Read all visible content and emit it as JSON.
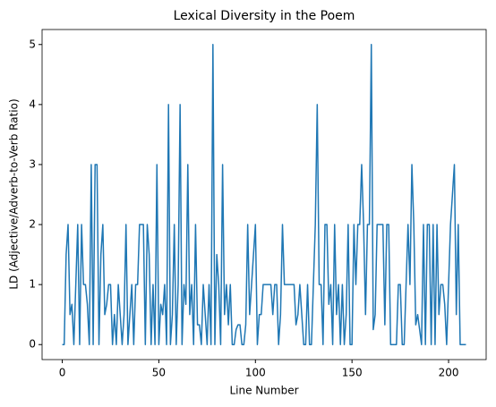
{
  "chart_data": {
    "type": "line",
    "title": "Lexical Diversity in the Poem",
    "xlabel": "Line Number",
    "ylabel": "LD (Adjective/Adverb-to-Verb Ratio)",
    "x": [
      0,
      1,
      2,
      3,
      4,
      5,
      6,
      7,
      8,
      9,
      10,
      11,
      12,
      13,
      14,
      15,
      16,
      17,
      18,
      19,
      20,
      21,
      22,
      23,
      24,
      25,
      26,
      27,
      28,
      29,
      30,
      31,
      32,
      33,
      34,
      35,
      36,
      37,
      38,
      39,
      40,
      41,
      42,
      43,
      44,
      45,
      46,
      47,
      48,
      49,
      50,
      51,
      52,
      53,
      54,
      55,
      56,
      57,
      58,
      59,
      60,
      61,
      62,
      63,
      64,
      65,
      66,
      67,
      68,
      69,
      70,
      71,
      72,
      73,
      74,
      75,
      76,
      77,
      78,
      79,
      80,
      81,
      82,
      83,
      84,
      85,
      86,
      87,
      88,
      89,
      90,
      91,
      92,
      93,
      94,
      95,
      96,
      97,
      98,
      99,
      100,
      101,
      102,
      103,
      104,
      105,
      106,
      107,
      108,
      109,
      110,
      111,
      112,
      113,
      114,
      115,
      116,
      117,
      118,
      119,
      120,
      121,
      122,
      123,
      124,
      125,
      126,
      127,
      128,
      129,
      130,
      131,
      132,
      133,
      134,
      135,
      136,
      137,
      138,
      139,
      140,
      141,
      142,
      143,
      144,
      145,
      146,
      147,
      148,
      149,
      150,
      151,
      152,
      153,
      154,
      155,
      156,
      157,
      158,
      159,
      160,
      161,
      162,
      163,
      164,
      165,
      166,
      167,
      168,
      169,
      170,
      171,
      172,
      173,
      174,
      175,
      176,
      177,
      178,
      179,
      180,
      181,
      182,
      183,
      184,
      185,
      186,
      187,
      188,
      189,
      190,
      191,
      192,
      193,
      194,
      195,
      196,
      197,
      198,
      199,
      200,
      201,
      202,
      203,
      204,
      205,
      206,
      207,
      208,
      209
    ],
    "series": [
      {
        "name": "LD",
        "color": "#1f77b4",
        "values": [
          0,
          0,
          1.5,
          2,
          0.5,
          0.67,
          0,
          1,
          2,
          0,
          2,
          1,
          1,
          0.67,
          0,
          3,
          0,
          3,
          3,
          0,
          1.5,
          2,
          0.5,
          0.67,
          1,
          1,
          0,
          0.5,
          0,
          1,
          0.5,
          0,
          0.5,
          2,
          0,
          0.5,
          1,
          0,
          1,
          1,
          2,
          2,
          2,
          0,
          2,
          1.5,
          0,
          1,
          0,
          3,
          0,
          0.67,
          0.5,
          1,
          0,
          4,
          0,
          0.5,
          2,
          0,
          1,
          4,
          0,
          1,
          0.67,
          3,
          0.5,
          1,
          0,
          2,
          0.33,
          0.33,
          0,
          1,
          0.5,
          0,
          1,
          0,
          5,
          0,
          1.5,
          1,
          0,
          3,
          0.5,
          1,
          0.33,
          1,
          0,
          0,
          0.25,
          0.33,
          0.33,
          0,
          0,
          0.33,
          2,
          0.5,
          1,
          1.5,
          2,
          0,
          0.5,
          0.5,
          1,
          1,
          1,
          1,
          1,
          0.5,
          1,
          1,
          0,
          0.5,
          2,
          1,
          1,
          1,
          1,
          1,
          1,
          0.33,
          0.5,
          1,
          0.5,
          0,
          0,
          1,
          0,
          0,
          1,
          2,
          4,
          1,
          1,
          0,
          2,
          2,
          0.67,
          1,
          0,
          2,
          0.5,
          1,
          0,
          1,
          0,
          0.5,
          2,
          0,
          0,
          2,
          1,
          2,
          2,
          3,
          2,
          0.5,
          2,
          2,
          5,
          0.25,
          0.5,
          2,
          2,
          2,
          2,
          0.33,
          2,
          2,
          0,
          0,
          0,
          0,
          1,
          1,
          0,
          0,
          1,
          2,
          1,
          3,
          2,
          0.33,
          0.5,
          0.25,
          0,
          2,
          0,
          2,
          2,
          0,
          2,
          0,
          2,
          0.5,
          1,
          1,
          0.67,
          0,
          1,
          2,
          2.5,
          3,
          0.5,
          2,
          0,
          0,
          0,
          0
        ]
      }
    ],
    "xlim": [
      -10.45,
      219.45
    ],
    "xticks": [
      0,
      50,
      100,
      150,
      200
    ],
    "ylim": [
      -0.25,
      5.25
    ],
    "yticks": [
      0,
      1,
      2,
      3,
      4,
      5
    ]
  }
}
